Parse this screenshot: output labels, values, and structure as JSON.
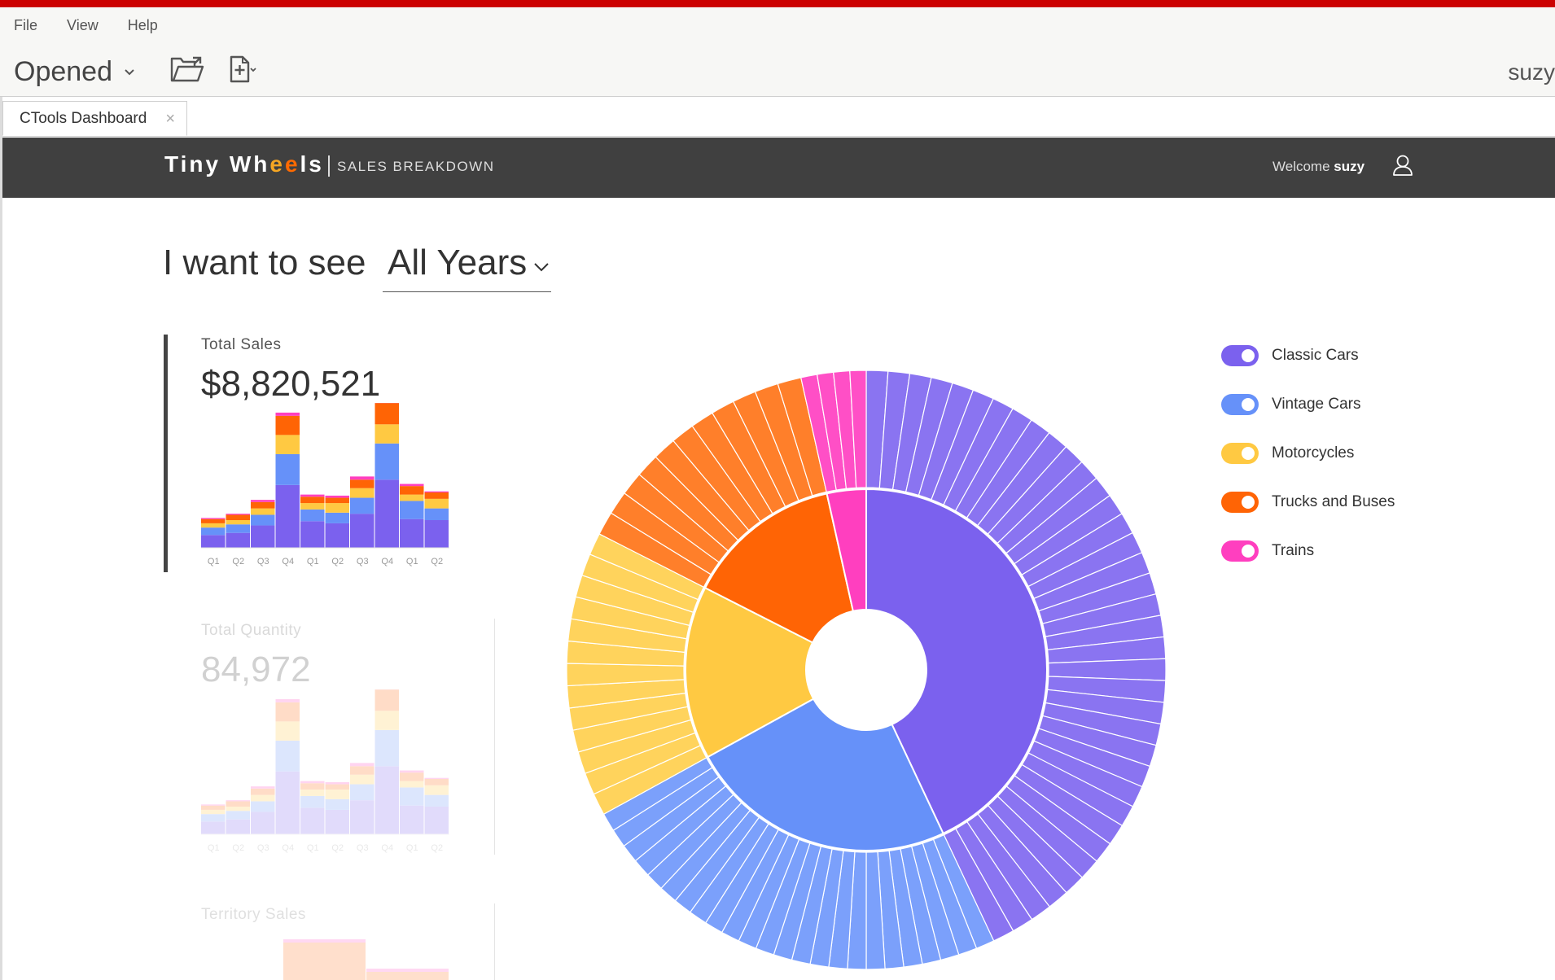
{
  "menubar": {
    "items": [
      "File",
      "View",
      "Help"
    ]
  },
  "toolbar": {
    "opened_label": "Opened",
    "user": "suzy"
  },
  "tab": {
    "label": "CTools Dashboard",
    "close": "×"
  },
  "header": {
    "brand_part1": "Tiny Wh",
    "brand_e1": "e",
    "brand_e2": "e",
    "brand_part2": "ls",
    "subtitle": "SALES BREAKDOWN",
    "welcome": "Welcome",
    "user": "suzy"
  },
  "filter": {
    "label": "I want to see",
    "selected": "All Years"
  },
  "kpis": {
    "total_sales": {
      "title": "Total Sales",
      "value": "$8,820,521"
    },
    "total_quantity": {
      "title": "Total Quantity",
      "value": "84,972"
    },
    "territory_sales": {
      "title": "Territory Sales"
    }
  },
  "quarters": [
    "Q1",
    "Q2",
    "Q3",
    "Q4",
    "Q1",
    "Q2",
    "Q3",
    "Q4",
    "Q1",
    "Q2"
  ],
  "legend": [
    {
      "label": "Classic Cars",
      "color": "#7b61ee"
    },
    {
      "label": "Vintage Cars",
      "color": "#6691f9"
    },
    {
      "label": "Motorcycles",
      "color": "#ffc942"
    },
    {
      "label": "Trucks and Buses",
      "color": "#ff6405"
    },
    {
      "label": "Trains",
      "color": "#ff3fbf"
    }
  ],
  "chart_data": [
    {
      "type": "bar",
      "title": "Total Sales",
      "categories": [
        "Q1",
        "Q2",
        "Q3",
        "Q4",
        "Q1",
        "Q2",
        "Q3",
        "Q4",
        "Q1",
        "Q2"
      ],
      "series": [
        {
          "name": "Classic Cars",
          "values": [
            12,
            14,
            21,
            59,
            25,
            23,
            32,
            64,
            27,
            26
          ]
        },
        {
          "name": "Vintage Cars",
          "values": [
            7,
            8,
            10,
            29,
            11,
            10,
            15,
            34,
            17,
            11
          ]
        },
        {
          "name": "Motorcycles",
          "values": [
            4,
            4,
            6,
            18,
            6,
            9,
            9,
            18,
            6,
            9
          ]
        },
        {
          "name": "Trucks and Buses",
          "values": [
            4,
            5,
            6,
            18,
            6,
            5,
            8,
            20,
            8,
            6
          ]
        },
        {
          "name": "Trains",
          "values": [
            1,
            1,
            2,
            3,
            2,
            2,
            3,
            3,
            2,
            1
          ]
        }
      ]
    },
    {
      "type": "bar",
      "title": "Total Quantity",
      "categories": [
        "Q1",
        "Q2",
        "Q3",
        "Q4",
        "Q1",
        "Q2",
        "Q3",
        "Q4",
        "Q1",
        "Q2"
      ],
      "series": [
        {
          "name": "Classic Cars",
          "values": [
            12,
            14,
            21,
            59,
            25,
            23,
            32,
            64,
            27,
            26
          ]
        },
        {
          "name": "Vintage Cars",
          "values": [
            7,
            8,
            10,
            29,
            11,
            10,
            15,
            34,
            17,
            11
          ]
        },
        {
          "name": "Motorcycles",
          "values": [
            4,
            4,
            6,
            18,
            6,
            9,
            9,
            18,
            6,
            9
          ]
        },
        {
          "name": "Trucks and Buses",
          "values": [
            4,
            5,
            6,
            18,
            6,
            5,
            8,
            20,
            8,
            6
          ]
        },
        {
          "name": "Trains",
          "values": [
            1,
            1,
            2,
            3,
            2,
            2,
            3,
            3,
            2,
            1
          ]
        }
      ]
    },
    {
      "type": "pie",
      "title": "Sales Breakdown",
      "categories": [
        "Classic Cars",
        "Vintage Cars",
        "Motorcycles",
        "Trucks and Buses",
        "Trains"
      ],
      "values": [
        43,
        24,
        15.5,
        14,
        3.5
      ],
      "outer_ring_segments": [
        37,
        24,
        13,
        11,
        4
      ]
    }
  ]
}
